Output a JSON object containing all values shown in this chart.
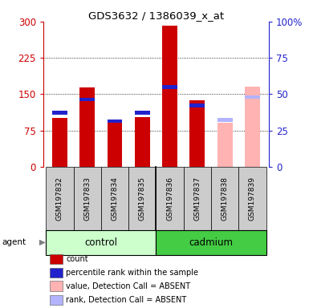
{
  "title": "GDS3632 / 1386039_x_at",
  "samples": [
    "GSM197832",
    "GSM197833",
    "GSM197834",
    "GSM197835",
    "GSM197836",
    "GSM197837",
    "GSM197838",
    "GSM197839"
  ],
  "count_values": [
    100,
    163,
    90,
    102,
    291,
    137,
    null,
    null
  ],
  "rank_values": [
    115,
    143,
    98,
    115,
    168,
    130,
    null,
    null
  ],
  "count_absent": [
    null,
    null,
    null,
    null,
    null,
    null,
    90,
    165
  ],
  "rank_absent": [
    null,
    null,
    null,
    null,
    null,
    null,
    100,
    148
  ],
  "ylim_left": [
    0,
    300
  ],
  "ylim_right": [
    0,
    100
  ],
  "yticks_left": [
    0,
    75,
    150,
    225,
    300
  ],
  "yticks_right": [
    0,
    25,
    50,
    75,
    100
  ],
  "ytick_labels_left": [
    "0",
    "75",
    "150",
    "225",
    "300"
  ],
  "ytick_labels_right": [
    "0",
    "25",
    "50",
    "75",
    "100%"
  ],
  "color_count": "#cc0000",
  "color_rank": "#2222cc",
  "color_count_absent": "#ffb3b3",
  "color_rank_absent": "#b3b3ff",
  "color_control_bg": "#ccffcc",
  "color_cadmium_bg": "#44cc44",
  "color_header_bg": "#cccccc",
  "agent_label": "agent",
  "group_labels": [
    "control",
    "cadmium"
  ],
  "legend_items": [
    {
      "color": "#cc0000",
      "label": "count"
    },
    {
      "color": "#2222cc",
      "label": "percentile rank within the sample"
    },
    {
      "color": "#ffb3b3",
      "label": "value, Detection Call = ABSENT"
    },
    {
      "color": "#b3b3ff",
      "label": "rank, Detection Call = ABSENT"
    }
  ]
}
